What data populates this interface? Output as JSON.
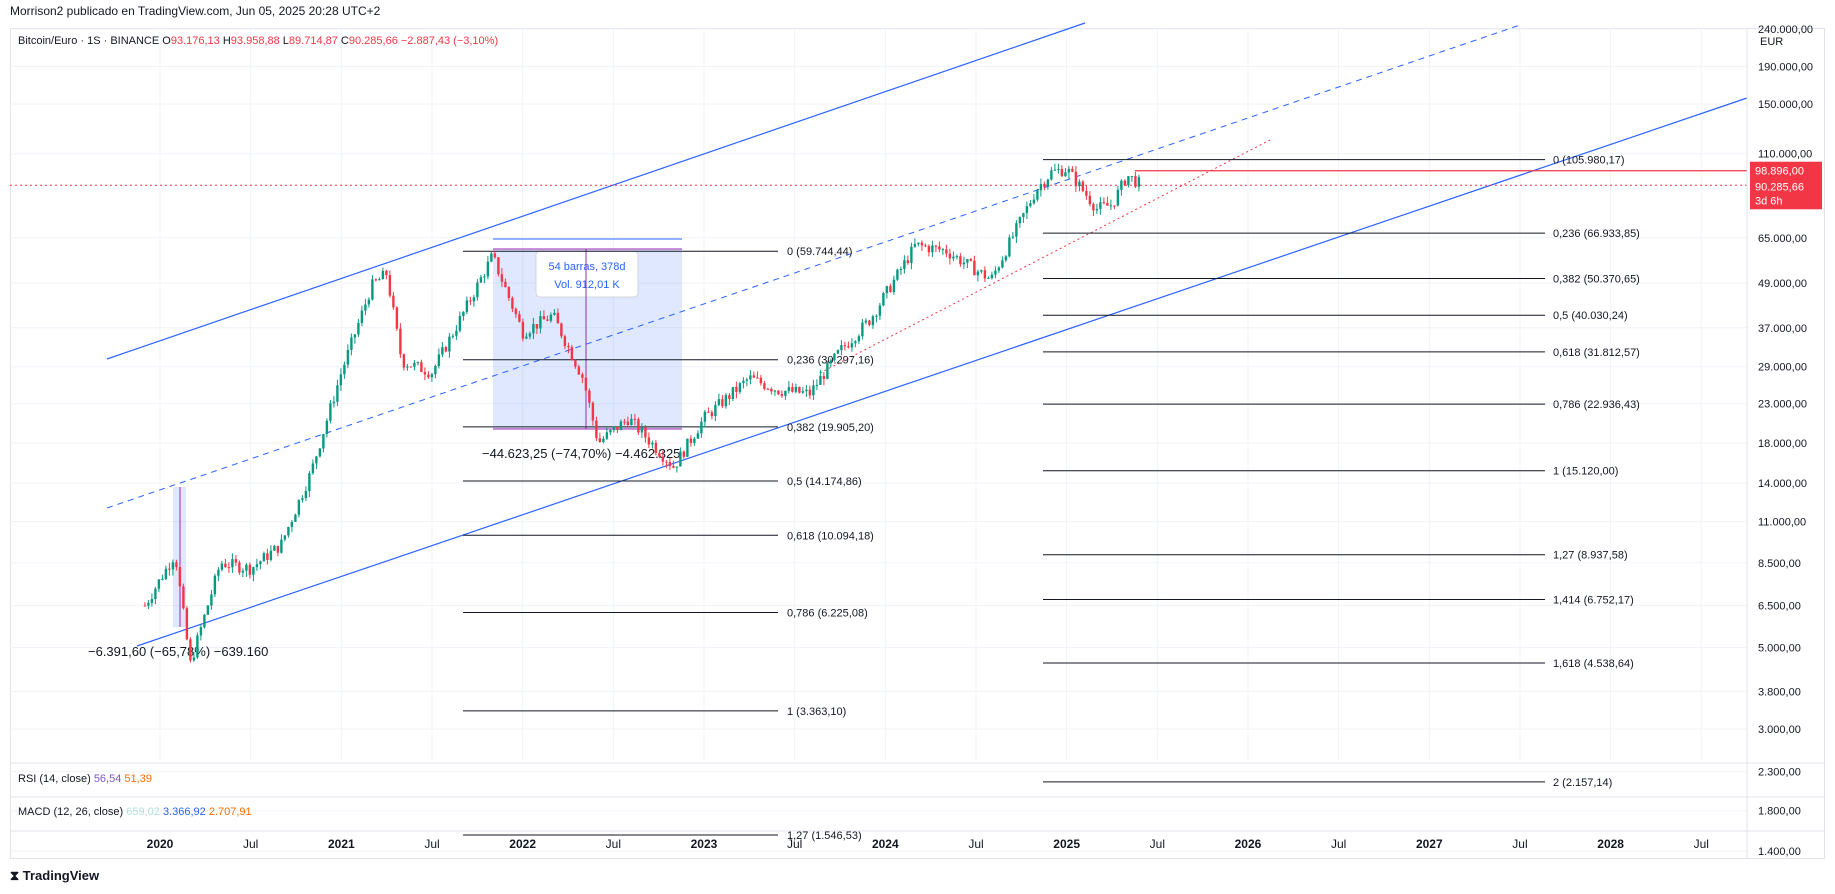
{
  "header": {
    "publisher": "Morrison2 publicado en TradingView.com, Jun 05, 2025 20:28 UTC+2"
  },
  "legend": {
    "symbol": "Bitcoin/Euro · 1S · BINANCE",
    "o_label": "O",
    "o": "93.176,13",
    "h_label": "H",
    "h": "93.958,88",
    "l_label": "L",
    "l": "89.714,87",
    "c_label": "C",
    "c": "90.285,66",
    "change": "−2.887,43 (−3,10%)"
  },
  "indicators": {
    "rsi": {
      "label": "RSI (14, close)",
      "v1": "56,54",
      "v2": "51,39",
      "c1": "#7e57c2",
      "c2": "#ff6d00"
    },
    "macd": {
      "label": "MACD (12, 26, close)",
      "v1": "659,02",
      "v2": "3.366,92",
      "v3": "2.707,91",
      "c1": "#b2dfdb",
      "c2": "#2962ff",
      "c3": "#ff6d00"
    }
  },
  "price_axis": {
    "currency": "EUR",
    "ticks": [
      "240.000,00",
      "190.000,00",
      "150.000,00",
      "110.000,00",
      "65.000,00",
      "49.000,00",
      "37.000,00",
      "29.000,00",
      "23.000,00",
      "18.000,00",
      "14.000,00",
      "11.000,00",
      "8.500,00",
      "6.500,00",
      "5.000,00",
      "3.800,00",
      "3.000,00",
      "2.300,00",
      "1.800,00",
      "1.400,00"
    ],
    "badge_high": "98.896,00",
    "badge_last": "90.285,66",
    "badge_countdown": "3d 6h"
  },
  "time_axis": [
    "2020",
    "Jul",
    "2021",
    "Jul",
    "2022",
    "Jul",
    "2023",
    "Jul",
    "2024",
    "Jul",
    "2025",
    "Jul",
    "2026",
    "Jul",
    "2027",
    "Jul",
    "2028",
    "Jul"
  ],
  "annotations": {
    "measure_box_1": "54 barras, 378d",
    "measure_box_2": "Vol. 912,01 K",
    "drop_2022": "−44.623,25 (−74,70%) −4.462.325",
    "drop_2020": "−6.391,60 (−65,78%) −639.160"
  },
  "fib_left": [
    "0 (59.744,44)",
    "0,236 (30.297,16)",
    "0,382 (19.905,20)",
    "0,5 (14.174,86)",
    "0,618 (10.094,18)",
    "0,786 (6.225,08)",
    "1 (3.363,10)",
    "1,27 (1.546,53)"
  ],
  "fib_right": [
    "0 (105.980,17)",
    "0,236 (66.933,85)",
    "0,382 (50.370,65)",
    "0,5 (40.030,24)",
    "0,618 (31.812,57)",
    "0,786 (22.936,43)",
    "1 (15.120,00)",
    "1,27 (8.937,58)",
    "1,414 (6.752,17)",
    "1,618 (4.538,64)",
    "2 (2.157,14)"
  ],
  "chart_data": {
    "type": "candlestick",
    "title": "Bitcoin/Euro · 1S · BINANCE",
    "y_scale": "log",
    "currency": "EUR",
    "ylim": [
      1200,
      290000
    ],
    "x_range": [
      "2019-11",
      "2028-10"
    ],
    "series": [
      {
        "name": "Bitcoin/Euro",
        "approx_weekly_close": [
          [
            "2019-12",
            6500
          ],
          [
            "2020-02",
            9000
          ],
          [
            "2020-03",
            4500
          ],
          [
            "2020-05",
            8500
          ],
          [
            "2020-07",
            8200
          ],
          [
            "2020-09",
            9500
          ],
          [
            "2020-11",
            15000
          ],
          [
            "2021-01",
            28000
          ],
          [
            "2021-03",
            48000
          ],
          [
            "2021-04",
            52000
          ],
          [
            "2021-05",
            30000
          ],
          [
            "2021-07",
            28000
          ],
          [
            "2021-09",
            40000
          ],
          [
            "2021-11",
            58000
          ],
          [
            "2022-01",
            36000
          ],
          [
            "2022-03",
            40000
          ],
          [
            "2022-05",
            27000
          ],
          [
            "2022-06",
            18000
          ],
          [
            "2022-08",
            21000
          ],
          [
            "2022-11",
            15500
          ],
          [
            "2023-01",
            21000
          ],
          [
            "2023-04",
            27000
          ],
          [
            "2023-06",
            25000
          ],
          [
            "2023-08",
            24500
          ],
          [
            "2023-10",
            32000
          ],
          [
            "2023-12",
            39000
          ],
          [
            "2024-03",
            62000
          ],
          [
            "2024-05",
            60000
          ],
          [
            "2024-08",
            50000
          ],
          [
            "2024-11",
            88000
          ],
          [
            "2024-12",
            98000
          ],
          [
            "2025-01",
            100000
          ],
          [
            "2025-03",
            78000
          ],
          [
            "2025-04",
            80000
          ],
          [
            "2025-05",
            96000
          ],
          [
            "2025-06",
            90285.66
          ]
        ]
      }
    ],
    "last": {
      "open": 93176.13,
      "high": 93958.88,
      "low": 89714.87,
      "close": 90285.66,
      "change": -2887.43,
      "change_pct": -3.1
    },
    "fib_retracement_left": {
      "levels": [
        0,
        0.236,
        0.382,
        0.5,
        0.618,
        0.786,
        1,
        1.27
      ],
      "prices": [
        59744.44,
        30297.16,
        19905.2,
        14174.86,
        10094.18,
        6225.08,
        3363.1,
        1546.53
      ]
    },
    "fib_retracement_right": {
      "levels": [
        0,
        0.236,
        0.382,
        0.5,
        0.618,
        0.786,
        1,
        1.27,
        1.414,
        1.618,
        2
      ],
      "prices": [
        105980.17,
        66933.85,
        50370.65,
        40030.24,
        31812.57,
        22936.43,
        15120.0,
        8937.58,
        6752.17,
        4538.64,
        2157.14
      ]
    }
  },
  "colors": {
    "up": "#089981",
    "down": "#f23645",
    "trend": "#2962ff",
    "measure": "#9c27b0",
    "grid": "#f0f3fa"
  },
  "footer": {
    "logo": "TradingView"
  }
}
